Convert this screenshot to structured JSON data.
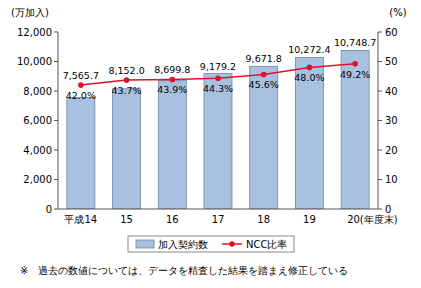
{
  "chart_data": {
    "type": "bar",
    "y_label": "(万加入)",
    "y2_label": "(%)",
    "annotation": "※　過去の数値については、データを精査した結果を踏まえ修正している",
    "categories": [
      "平成14",
      "15",
      "16",
      "17",
      "18",
      "19",
      "20(年度末)"
    ],
    "series": [
      {
        "name": "加入契約数",
        "type": "bar",
        "color": "#a9c1e0",
        "values": [
          7565.7,
          8152.0,
          8699.8,
          9179.2,
          9671.8,
          10272.4,
          10748.7
        ],
        "value_labels": [
          "7,565.7",
          "8,152.0",
          "8,699.8",
          "9,179.2",
          "9,671.8",
          "10,272.4",
          "10,748.7"
        ]
      },
      {
        "name": "NCC比率",
        "type": "line",
        "axis": "y2",
        "color": "#e0102c",
        "marker": "circle",
        "values": [
          42.0,
          43.7,
          43.9,
          44.3,
          45.6,
          48.0,
          49.2
        ],
        "value_labels": [
          "42.0%",
          "43.7%",
          "43.9%",
          "44.3%",
          "45.6%",
          "48.0%",
          "49.2%"
        ]
      }
    ],
    "ylim": [
      0,
      12000
    ],
    "yticks": [
      0,
      {
        "value": 2000,
        "label": "2,000"
      },
      {
        "value": 4000,
        "label": "4,000"
      },
      {
        "value": 6000,
        "label": "6,000"
      },
      {
        "value": 8000,
        "label": "8,000"
      },
      {
        "value": 10000,
        "label": "10,000"
      },
      {
        "value": 12000,
        "label": "12,000"
      }
    ],
    "y2lim": [
      0,
      60
    ],
    "y2ticks": [
      0,
      10,
      20,
      30,
      40,
      50,
      60
    ],
    "grid": false,
    "data_labels": true,
    "legend": "bottom"
  }
}
